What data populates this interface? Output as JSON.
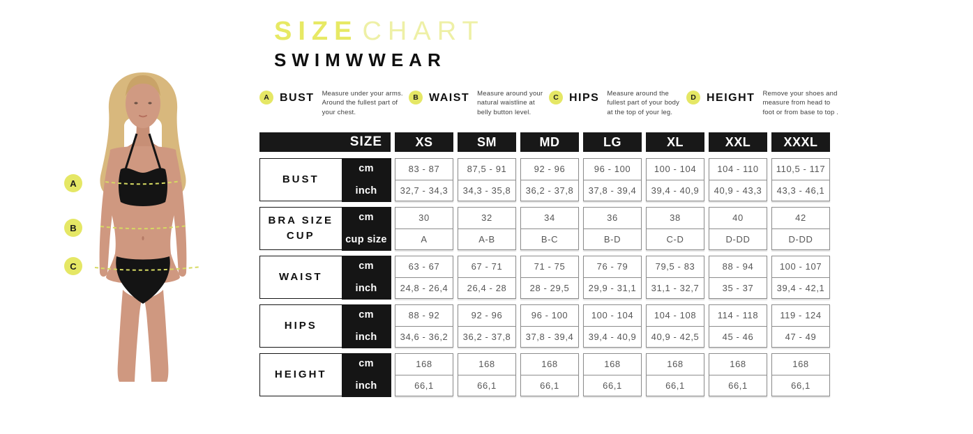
{
  "title": {
    "primary": "SIZE",
    "secondary": "CHART"
  },
  "subtitle": "SWIMWWEAR",
  "colors": {
    "accent_yellow": "#e7e964",
    "accent_yellow_light": "#eef0a6",
    "table_black": "#181818",
    "cell_border": "#8c8c8c"
  },
  "legend": [
    {
      "key": "A",
      "name": "BUST",
      "desc": "Measure under your arms. Around the fullest part of your chest."
    },
    {
      "key": "B",
      "name": "WAIST",
      "desc": "Measure around your natural waistline at belly button level."
    },
    {
      "key": "C",
      "name": "HIPS",
      "desc": "Measure around the fullest part of your body at the top of your leg."
    },
    {
      "key": "D",
      "name": "HEIGHT",
      "desc": "Remove your shoes and measure from head to foot or from base to top ."
    }
  ],
  "figure_markers": [
    "A",
    "B",
    "C"
  ],
  "table": {
    "header_label": "SIZE",
    "sizes": [
      "XS",
      "SM",
      "MD",
      "LG",
      "XL",
      "XXL",
      "XXXL"
    ],
    "rows": [
      {
        "label": "BUST",
        "unit_rows": [
          {
            "unit": "cm",
            "values": [
              "83 - 87",
              "87,5 - 91",
              "92 - 96",
              "96 - 100",
              "100 - 104",
              "104 - 110",
              "110,5 - 117"
            ]
          },
          {
            "unit": "inch",
            "values": [
              "32,7 - 34,3",
              "34,3 - 35,8",
              "36,2 - 37,8",
              "37,8 - 39,4",
              "39,4 - 40,9",
              "40,9 - 43,3",
              "43,3 - 46,1"
            ]
          }
        ]
      },
      {
        "label": "BRA SIZE CUP",
        "unit_rows": [
          {
            "unit": "cm",
            "values": [
              "30",
              "32",
              "34",
              "36",
              "38",
              "40",
              "42"
            ]
          },
          {
            "unit": "cup size",
            "values": [
              "A",
              "A-B",
              "B-C",
              "B-D",
              "C-D",
              "D-DD",
              "D-DD"
            ]
          }
        ]
      },
      {
        "label": "WAIST",
        "unit_rows": [
          {
            "unit": "cm",
            "values": [
              "63 - 67",
              "67 - 71",
              "71 - 75",
              "76 - 79",
              "79,5 - 83",
              "88 - 94",
              "100 - 107"
            ]
          },
          {
            "unit": "inch",
            "values": [
              "24,8 - 26,4",
              "26,4 - 28",
              "28 - 29,5",
              "29,9 - 31,1",
              "31,1 - 32,7",
              "35 - 37",
              "39,4 - 42,1"
            ]
          }
        ]
      },
      {
        "label": "HIPS",
        "unit_rows": [
          {
            "unit": "cm",
            "values": [
              "88 - 92",
              "92 - 96",
              "96 - 100",
              "100 - 104",
              "104 - 108",
              "114 - 118",
              "119 - 124"
            ]
          },
          {
            "unit": "inch",
            "values": [
              "34,6 - 36,2",
              "36,2 - 37,8",
              "37,8 - 39,4",
              "39,4 - 40,9",
              "40,9 - 42,5",
              "45 - 46",
              "47 - 49"
            ]
          }
        ]
      },
      {
        "label": "HEIGHT",
        "unit_rows": [
          {
            "unit": "cm",
            "values": [
              "168",
              "168",
              "168",
              "168",
              "168",
              "168",
              "168"
            ]
          },
          {
            "unit": "inch",
            "values": [
              "66,1",
              "66,1",
              "66,1",
              "66,1",
              "66,1",
              "66,1",
              "66,1"
            ]
          }
        ]
      }
    ]
  }
}
